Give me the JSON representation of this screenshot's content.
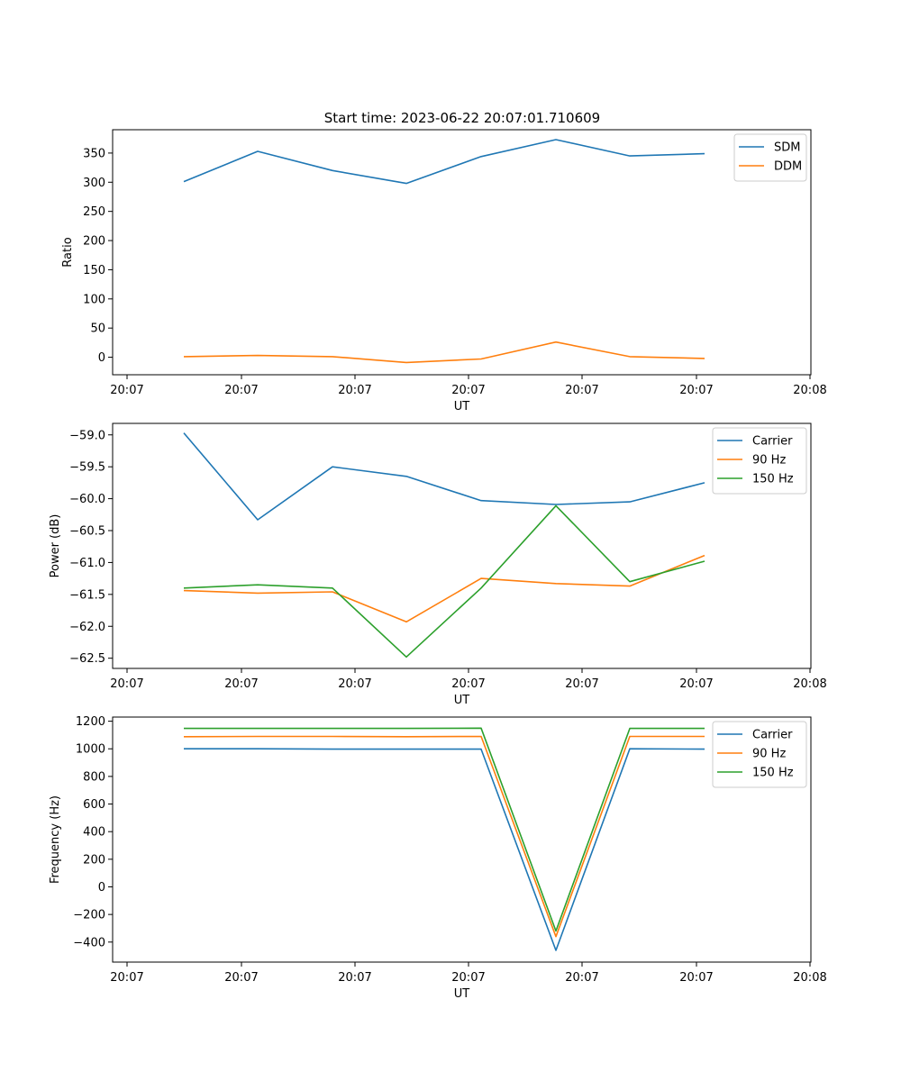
{
  "figure": {
    "title": "Start time: 2023-06-22 20:07:01.710609"
  },
  "chart_data": [
    {
      "type": "line",
      "title": "Start time: 2023-06-22 20:07:01.710609",
      "xlabel": "UT",
      "ylabel": "Ratio",
      "x_ticks": [
        "20:07",
        "20:07",
        "20:07",
        "20:07",
        "20:07",
        "20:07",
        "20:07"
      ],
      "x_tick_extra": "20:08",
      "y_ticks": [
        0,
        50,
        100,
        150,
        200,
        250,
        300,
        350
      ],
      "ylim": [
        -30,
        390
      ],
      "legend": "upper-right",
      "series": [
        {
          "name": "SDM",
          "color": "#1f77b4",
          "values": [
            301,
            353,
            320,
            298,
            344,
            373,
            345,
            349
          ]
        },
        {
          "name": "DDM",
          "color": "#ff7f0e",
          "values": [
            1,
            3,
            1,
            -9,
            -3,
            26,
            1,
            -2
          ]
        }
      ]
    },
    {
      "type": "line",
      "title": "",
      "xlabel": "UT",
      "ylabel": "Power (dB)",
      "x_ticks": [
        "20:07",
        "20:07",
        "20:07",
        "20:07",
        "20:07",
        "20:07",
        "20:07"
      ],
      "x_tick_extra": "20:08",
      "y_ticks": [
        -59.0,
        -59.5,
        -60.0,
        -60.5,
        -61.0,
        -61.5,
        -62.0,
        -62.5
      ],
      "ylim": [
        -62.66,
        -58.82
      ],
      "legend": "upper-right",
      "series": [
        {
          "name": "Carrier",
          "color": "#1f77b4",
          "values": [
            -58.97,
            -60.33,
            -59.5,
            -59.65,
            -60.03,
            -60.09,
            -60.05,
            -59.75
          ]
        },
        {
          "name": "90 Hz",
          "color": "#ff7f0e",
          "values": [
            -61.44,
            -61.48,
            -61.46,
            -61.93,
            -61.25,
            -61.33,
            -61.37,
            -60.89
          ]
        },
        {
          "name": "150 Hz",
          "color": "#2ca02c",
          "values": [
            -61.4,
            -61.35,
            -61.4,
            -62.48,
            -61.4,
            -60.11,
            -61.3,
            -60.98
          ]
        }
      ]
    },
    {
      "type": "line",
      "title": "",
      "xlabel": "UT",
      "ylabel": "Frequency (Hz)",
      "x_ticks": [
        "20:07",
        "20:07",
        "20:07",
        "20:07",
        "20:07",
        "20:07",
        "20:07"
      ],
      "x_tick_extra": "20:08",
      "y_ticks": [
        -400,
        -200,
        0,
        200,
        400,
        600,
        800,
        1000,
        1200
      ],
      "ylim": [
        -545,
        1230
      ],
      "legend": "upper-right",
      "series": [
        {
          "name": "Carrier",
          "color": "#1f77b4",
          "values": [
            1000,
            1000,
            998,
            998,
            998,
            -460,
            1000,
            998
          ]
        },
        {
          "name": "90 Hz",
          "color": "#ff7f0e",
          "values": [
            1088,
            1090,
            1090,
            1088,
            1090,
            -360,
            1090,
            1090
          ]
        },
        {
          "name": "150 Hz",
          "color": "#2ca02c",
          "values": [
            1148,
            1148,
            1148,
            1148,
            1150,
            -320,
            1148,
            1148
          ]
        }
      ]
    }
  ]
}
